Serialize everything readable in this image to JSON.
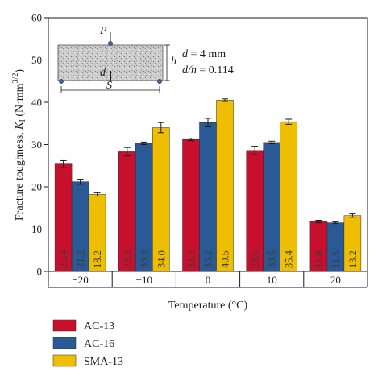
{
  "chart_data": {
    "type": "bar",
    "xlabel": "Temperature (°C)",
    "ylabel": {
      "prefix": "Fracture toughness, ",
      "symbol": "K",
      "subscript": "I",
      "unit_open": " (N·mm",
      "unit_exp": "3/2",
      "unit_close": ")"
    },
    "ylim": [
      0,
      60
    ],
    "yticks": [
      0,
      10,
      20,
      30,
      40,
      50,
      60
    ],
    "categories": [
      "−20",
      "−10",
      "0",
      "10",
      "20"
    ],
    "series": [
      {
        "name": "AC-13",
        "color": "#c8102e",
        "values": [
          25.4,
          28.3,
          31.2,
          28.6,
          11.8
        ],
        "errors": [
          0.8,
          1.0,
          0.3,
          1.0,
          0.3
        ],
        "labels": [
          "25.4",
          "28.3",
          "31.2",
          "28.6",
          "11.8"
        ]
      },
      {
        "name": "AC-16",
        "color": "#2a5a96",
        "values": [
          21.2,
          30.3,
          35.2,
          30.5,
          11.5
        ],
        "errors": [
          0.6,
          0.3,
          1.0,
          0.3,
          0.2
        ],
        "labels": [
          "21.2",
          "30.3",
          "35.2",
          "30.5",
          "11.5"
        ]
      },
      {
        "name": "SMA-13",
        "color": "#f0be00",
        "values": [
          18.2,
          34.0,
          40.5,
          35.4,
          13.2
        ],
        "errors": [
          0.4,
          1.2,
          0.3,
          0.6,
          0.4
        ],
        "labels": [
          "18.2",
          "34.0",
          "40.5",
          "35.4",
          "13.2"
        ]
      }
    ],
    "legend": {
      "placement": "bottom-left"
    },
    "grid": false,
    "inset": {
      "load_symbol": "P",
      "notch_symbol": "d",
      "height_symbol": "h",
      "span_symbol": "S",
      "d_symbol": "d",
      "d_value": " = 4 mm",
      "ratio_numer": "d",
      "ratio_denom": "/h",
      "ratio_value": " = 0.114"
    }
  }
}
